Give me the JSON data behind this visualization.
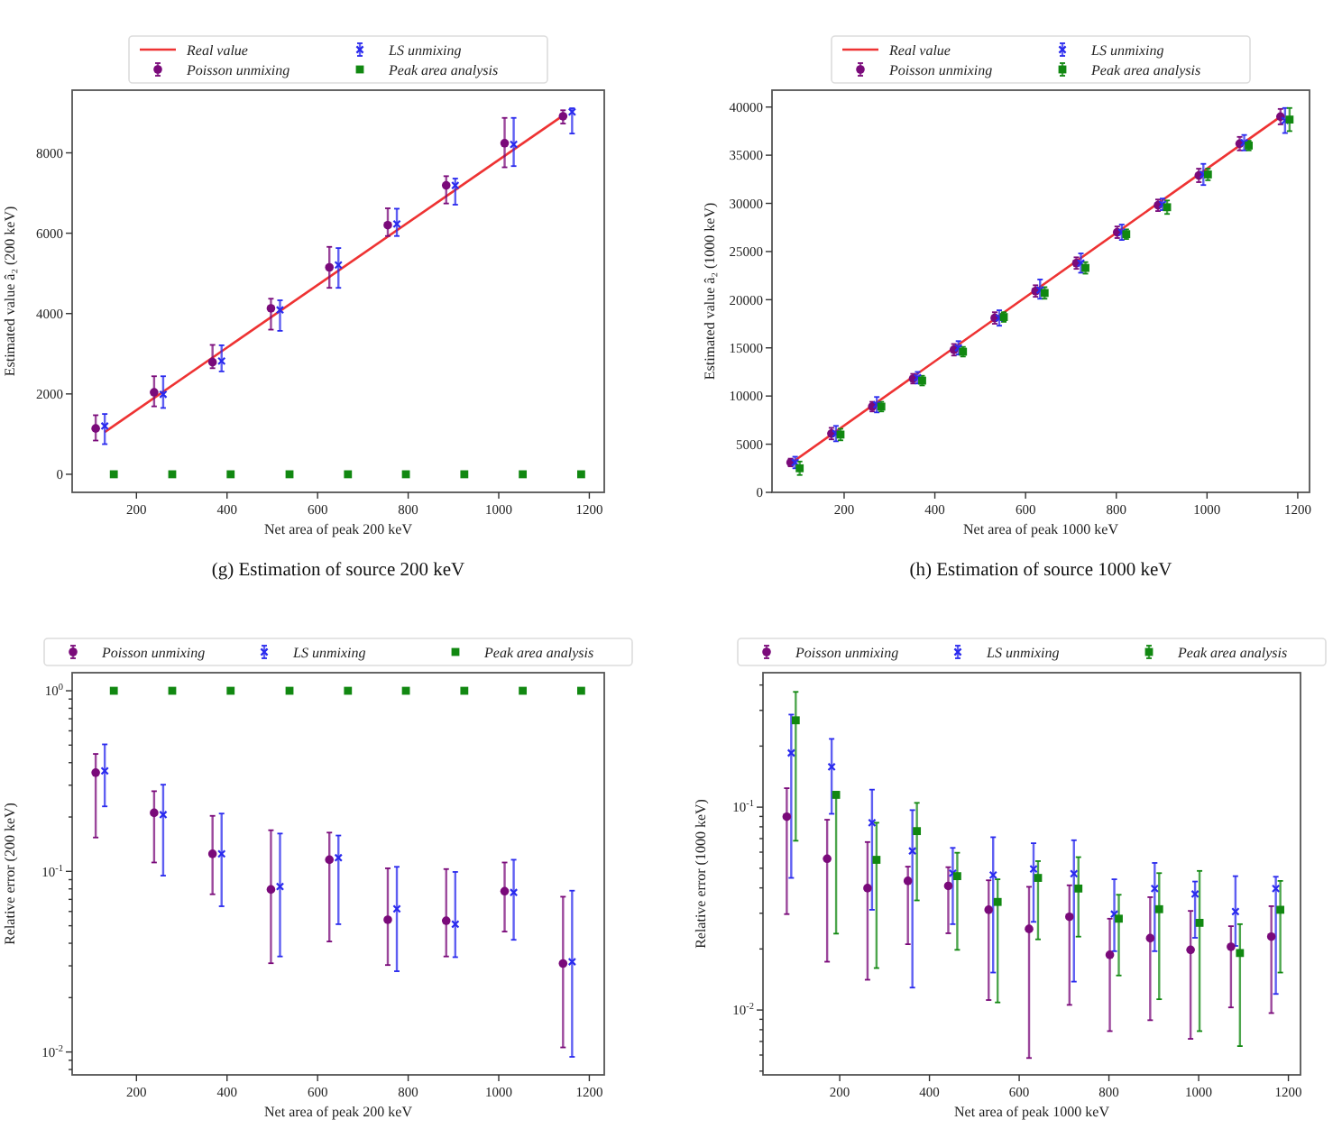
{
  "chart_data": [
    {
      "type": "scatter",
      "title": "(g) Estimation of source 200 keV",
      "xlabel": "Net area of peak 200 keV",
      "ylabel": "Estimated value â₂ (200 keV)",
      "xlim": [
        58,
        1233
      ],
      "xticks": [
        200,
        400,
        600,
        800,
        1000,
        1200
      ],
      "ylim": [
        -450,
        9560
      ],
      "yticks": [
        0,
        2000,
        4000,
        6000,
        8000
      ],
      "legend": "top",
      "series": [
        {
          "name": "Real value",
          "type": "line",
          "color": "#ee3333",
          "x": [
            130,
            1142
          ],
          "values": [
            1050,
            8930
          ]
        },
        {
          "name": "Poisson unmixing",
          "color": "#7a0a7a",
          "marker": "circle",
          "x": [
            110,
            239,
            368,
            497,
            626,
            755,
            884,
            1013,
            1142
          ],
          "values": [
            1140,
            2040,
            2790,
            4130,
            5150,
            6200,
            7190,
            8240,
            8910
          ],
          "errors": [
            [
              840,
              1470
            ],
            [
              1690,
              2440
            ],
            [
              2640,
              3220
            ],
            [
              3600,
              4370
            ],
            [
              4640,
              5660
            ],
            [
              5930,
              6620
            ],
            [
              6740,
              7420
            ],
            [
              7640,
              8870
            ],
            [
              8730,
              9060
            ]
          ]
        },
        {
          "name": "LS unmixing",
          "color": "#2a2aee",
          "marker": "cross",
          "x": [
            130,
            259,
            388,
            517,
            646,
            775,
            904,
            1033,
            1162
          ],
          "values": [
            1200,
            1990,
            2820,
            4090,
            5210,
            6230,
            7190,
            8210,
            9020
          ],
          "errors": [
            [
              750,
              1500
            ],
            [
              1650,
              2440
            ],
            [
              2560,
              3210
            ],
            [
              3570,
              4330
            ],
            [
              4640,
              5630
            ],
            [
              5930,
              6610
            ],
            [
              6710,
              7360
            ],
            [
              7670,
              8870
            ],
            [
              8480,
              9110
            ]
          ]
        },
        {
          "name": "Peak area analysis",
          "color": "#118811",
          "marker": "square",
          "x": [
            150,
            279,
            408,
            538,
            667,
            795,
            924,
            1053,
            1182
          ],
          "values": [
            0,
            0,
            0,
            0,
            0,
            0,
            0,
            0,
            0
          ]
        }
      ]
    },
    {
      "type": "scatter",
      "title": "(h) Estimation of source 1000 keV",
      "xlabel": "Net area of peak 1000 keV",
      "ylabel": "Estimated value â₂ (1000 keV)",
      "xlim": [
        41,
        1226
      ],
      "xticks": [
        200,
        400,
        600,
        800,
        1000,
        1200
      ],
      "ylim": [
        0,
        41750
      ],
      "yticks": [
        0,
        5000,
        10000,
        15000,
        20000,
        25000,
        30000,
        35000,
        40000
      ],
      "legend": "top",
      "series": [
        {
          "name": "Real value",
          "type": "line",
          "color": "#ee3333",
          "x": [
            82,
            1162
          ],
          "values": [
            3000,
            39000
          ]
        },
        {
          "name": "Poisson unmixing",
          "color": "#7a0a7a",
          "marker": "circle",
          "x": [
            82,
            172,
            262,
            352,
            442,
            532,
            622,
            712,
            802,
            892,
            982,
            1072,
            1162
          ],
          "values": [
            3100,
            6100,
            8900,
            11800,
            14800,
            18100,
            20900,
            23800,
            27000,
            29800,
            32900,
            36200,
            39000
          ],
          "errors": [
            [
              2700,
              3500
            ],
            [
              5500,
              6700
            ],
            [
              8400,
              9400
            ],
            [
              11300,
              12300
            ],
            [
              14200,
              15400
            ],
            [
              17500,
              18700
            ],
            [
              20300,
              21500
            ],
            [
              23200,
              24400
            ],
            [
              26400,
              27600
            ],
            [
              29200,
              30400
            ],
            [
              32200,
              33600
            ],
            [
              35500,
              36900
            ],
            [
              38200,
              39800
            ]
          ]
        },
        {
          "name": "LS unmixing",
          "color": "#2a2aee",
          "marker": "cross",
          "x": [
            92,
            182,
            272,
            362,
            452,
            542,
            632,
            722,
            812,
            902,
            992,
            1082,
            1172
          ],
          "values": [
            3100,
            6100,
            9100,
            11900,
            15000,
            18100,
            21000,
            23800,
            27000,
            29900,
            33000,
            36300,
            38600
          ],
          "errors": [
            [
              2500,
              3700
            ],
            [
              5300,
              6900
            ],
            [
              8300,
              9900
            ],
            [
              11300,
              12500
            ],
            [
              14300,
              15700
            ],
            [
              17300,
              18900
            ],
            [
              20100,
              22100
            ],
            [
              22800,
              24800
            ],
            [
              26200,
              27800
            ],
            [
              29300,
              30500
            ],
            [
              31900,
              34100
            ],
            [
              35500,
              37100
            ],
            [
              37300,
              39900
            ]
          ]
        },
        {
          "name": "Peak area analysis",
          "color": "#118811",
          "marker": "square",
          "x": [
            102,
            192,
            282,
            372,
            462,
            552,
            642,
            732,
            822,
            912,
            1002,
            1092,
            1182
          ],
          "values": [
            2500,
            6000,
            8900,
            11600,
            14600,
            18200,
            20700,
            23300,
            26800,
            29600,
            33000,
            36000,
            38700
          ],
          "errors": [
            [
              1800,
              3200
            ],
            [
              5400,
              6600
            ],
            [
              8400,
              9400
            ],
            [
              11100,
              12100
            ],
            [
              14100,
              15100
            ],
            [
              17700,
              18700
            ],
            [
              20100,
              21300
            ],
            [
              22700,
              23900
            ],
            [
              26300,
              27300
            ],
            [
              28900,
              30300
            ],
            [
              32400,
              33600
            ],
            [
              35500,
              36500
            ],
            [
              37500,
              39900
            ]
          ]
        }
      ]
    },
    {
      "type": "scatter",
      "xlabel": "Net area of peak 200 keV",
      "ylabel": "Relative error (200 keV)",
      "xlim": [
        58,
        1233
      ],
      "xticks": [
        200,
        400,
        600,
        800,
        1000,
        1200
      ],
      "ylim": [
        0.00747,
        1.259
      ],
      "log": "y",
      "yticks": [
        {
          "value": 1,
          "label": "10$^{0}$"
        },
        {
          "value": 0.1,
          "label": "10$^{-1}$"
        },
        {
          "value": 0.01,
          "label": "10$^{-2}$"
        },
        {
          "value": 0.008,
          "label": null
        },
        {
          "value": 0.009,
          "label": null
        },
        {
          "value": 0.02,
          "label": null
        },
        {
          "value": 0.03,
          "label": null
        },
        {
          "value": 0.04,
          "label": null
        },
        {
          "value": 0.05,
          "label": null
        },
        {
          "value": 0.06,
          "label": null
        },
        {
          "value": 0.07,
          "label": null
        },
        {
          "value": 0.08,
          "label": null
        },
        {
          "value": 0.09,
          "label": null
        },
        {
          "value": 0.2,
          "label": null
        },
        {
          "value": 0.3,
          "label": null
        },
        {
          "value": 0.4,
          "label": null
        },
        {
          "value": 0.5,
          "label": null
        },
        {
          "value": 0.6,
          "label": null
        },
        {
          "value": 0.7,
          "label": null
        },
        {
          "value": 0.8,
          "label": null
        },
        {
          "value": 0.9,
          "label": null
        }
      ],
      "legend": "top",
      "series": [
        {
          "name": "Poisson unmixing",
          "color": "#7a0a7a",
          "marker": "circle",
          "x": [
            110,
            239,
            368,
            497,
            626,
            755,
            884,
            1013,
            1142
          ],
          "values": [
            0.352,
            0.211,
            0.125,
            0.0794,
            0.116,
            0.054,
            0.0533,
            0.0777,
            0.0309
          ],
          "errors": [
            [
              0.154,
              0.447
            ],
            [
              0.112,
              0.278
            ],
            [
              0.0747,
              0.203
            ],
            [
              0.031,
              0.169
            ],
            [
              0.0409,
              0.164
            ],
            [
              0.0303,
              0.104
            ],
            [
              0.0338,
              0.103
            ],
            [
              0.0464,
              0.112
            ],
            [
              0.0106,
              0.0724
            ]
          ]
        },
        {
          "name": "LS unmixing",
          "color": "#2a2aee",
          "marker": "cross",
          "x": [
            130,
            259,
            388,
            517,
            646,
            775,
            904,
            1033,
            1162
          ],
          "values": [
            0.36,
            0.206,
            0.125,
            0.0825,
            0.119,
            0.062,
            0.051,
            0.0764,
            0.0316
          ],
          "errors": [
            [
              0.229,
              0.505
            ],
            [
              0.0947,
              0.302
            ],
            [
              0.0641,
              0.209
            ],
            [
              0.0338,
              0.162
            ],
            [
              0.051,
              0.158
            ],
            [
              0.028,
              0.106
            ],
            [
              0.0335,
              0.0993
            ],
            [
              0.0418,
              0.116
            ],
            [
              0.0094,
              0.0782
            ]
          ]
        },
        {
          "name": "Peak area analysis",
          "color": "#118811",
          "marker": "square",
          "x": [
            150,
            279,
            408,
            538,
            667,
            795,
            924,
            1053,
            1182
          ],
          "values": [
            1,
            1,
            1,
            1,
            1,
            1,
            1,
            1,
            1
          ]
        }
      ]
    },
    {
      "type": "scatter",
      "xlabel": "Net area of peak 1000 keV",
      "ylabel": "Relative error (1000 keV)",
      "xlim": [
        29,
        1227
      ],
      "xticks": [
        200,
        400,
        600,
        800,
        1000,
        1200
      ],
      "ylim": [
        0.00479,
        0.46
      ],
      "log": "y",
      "yticks": [
        {
          "value": 0.1,
          "label": "10$^{-1}$"
        },
        {
          "value": 0.01,
          "label": "10$^{-2}$"
        },
        {
          "value": 0.005,
          "label": null
        },
        {
          "value": 0.006,
          "label": null
        },
        {
          "value": 0.007,
          "label": null
        },
        {
          "value": 0.008,
          "label": null
        },
        {
          "value": 0.009,
          "label": null
        },
        {
          "value": 0.02,
          "label": null
        },
        {
          "value": 0.03,
          "label": null
        },
        {
          "value": 0.04,
          "label": null
        },
        {
          "value": 0.05,
          "label": null
        },
        {
          "value": 0.06,
          "label": null
        },
        {
          "value": 0.07,
          "label": null
        },
        {
          "value": 0.08,
          "label": null
        },
        {
          "value": 0.09,
          "label": null
        },
        {
          "value": 0.2,
          "label": null
        },
        {
          "value": 0.3,
          "label": null
        },
        {
          "value": 0.4,
          "label": null
        }
      ],
      "legend": "top",
      "series": [
        {
          "name": "Poisson unmixing",
          "color": "#7a0a7a",
          "marker": "circle",
          "x": [
            82,
            172,
            262,
            352,
            442,
            532,
            622,
            712,
            802,
            892,
            982,
            1072,
            1162
          ],
          "values": [
            0.0897,
            0.0557,
            0.0399,
            0.0433,
            0.0409,
            0.0312,
            0.0251,
            0.0288,
            0.0187,
            0.0226,
            0.0198,
            0.0205,
            0.023
          ],
          "errors": [
            [
              0.0297,
              0.124
            ],
            [
              0.0173,
              0.0867
            ],
            [
              0.0141,
              0.0673
            ],
            [
              0.0211,
              0.0509
            ],
            [
              0.0239,
              0.0506
            ],
            [
              0.0112,
              0.0436
            ],
            [
              0.0058,
              0.0405
            ],
            [
              0.0106,
              0.0412
            ],
            [
              0.00787,
              0.0282
            ],
            [
              0.00891,
              0.036
            ],
            [
              0.00721,
              0.0308
            ],
            [
              0.0103,
              0.0259
            ],
            [
              0.00966,
              0.0325
            ]
          ]
        },
        {
          "name": "LS unmixing",
          "color": "#2a2aee",
          "marker": "cross",
          "x": [
            92,
            182,
            272,
            362,
            452,
            542,
            632,
            722,
            812,
            902,
            992,
            1082,
            1172
          ],
          "values": [
            0.185,
            0.158,
            0.0838,
            0.0608,
            0.0473,
            0.0463,
            0.0496,
            0.047,
            0.0297,
            0.0397,
            0.0373,
            0.0306,
            0.0397
          ],
          "errors": [
            [
              0.0448,
              0.286
            ],
            [
              0.0927,
              0.217
            ],
            [
              0.0312,
              0.122
            ],
            [
              0.0129,
              0.0967
            ],
            [
              0.0265,
              0.063
            ],
            [
              0.0153,
              0.0711
            ],
            [
              0.0272,
              0.0664
            ],
            [
              0.0138,
              0.0687
            ],
            [
              0.0195,
              0.0441
            ],
            [
              0.0195,
              0.0531
            ],
            [
              0.0227,
              0.043
            ],
            [
              0.0207,
              0.0457
            ],
            [
              0.012,
              0.0454
            ]
          ]
        },
        {
          "name": "Peak area analysis",
          "color": "#118811",
          "marker": "square",
          "x": [
            102,
            192,
            282,
            372,
            462,
            552,
            642,
            732,
            822,
            912,
            1002,
            1092,
            1182
          ],
          "values": [
            0.268,
            0.115,
            0.055,
            0.0762,
            0.0457,
            0.0341,
            0.0448,
            0.0397,
            0.0282,
            0.0314,
            0.0269,
            0.0191,
            0.0312
          ],
          "errors": [
            [
              0.0683,
              0.37
            ],
            [
              0.0238,
              0.119
            ],
            [
              0.0161,
              0.0838
            ],
            [
              0.0347,
              0.105
            ],
            [
              0.0198,
              0.0596
            ],
            [
              0.0109,
              0.0441
            ],
            [
              0.0223,
              0.0542
            ],
            [
              0.023,
              0.0567
            ],
            [
              0.0148,
              0.037
            ],
            [
              0.0113,
              0.0473
            ],
            [
              0.00787,
              0.0485
            ],
            [
              0.00664,
              0.0265
            ],
            [
              0.0153,
              0.0433
            ]
          ]
        }
      ]
    }
  ]
}
